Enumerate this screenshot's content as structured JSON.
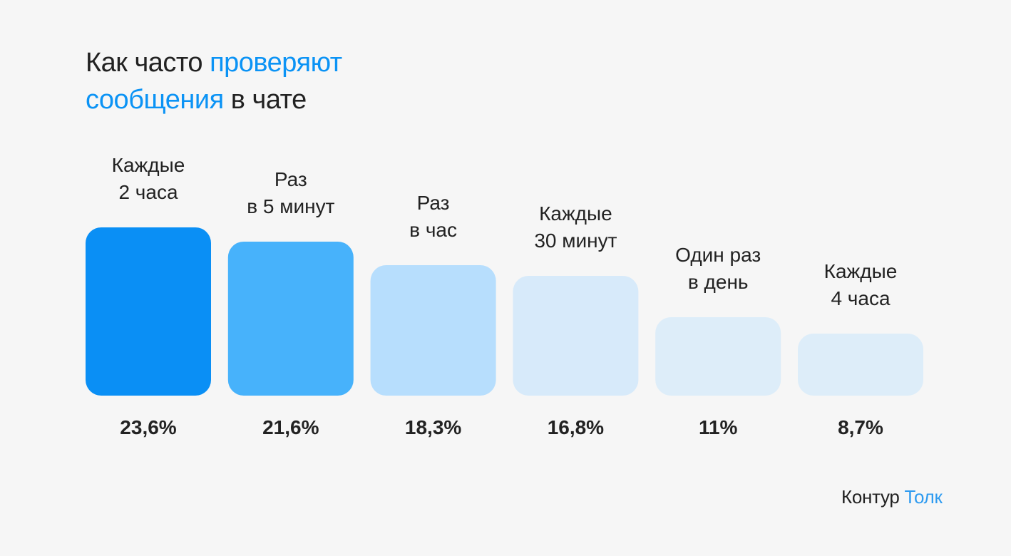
{
  "title": {
    "part1": "Как часто ",
    "part2": "проверяют",
    "part3": "сообщения",
    "part4": " в чате"
  },
  "logo": {
    "brand": "Контур",
    "product": "Толк"
  },
  "chart_data": {
    "type": "bar",
    "categories": [
      [
        "Каждые",
        "2 часа"
      ],
      [
        "Раз",
        "в 5 минут"
      ],
      [
        "Раз",
        "в час"
      ],
      [
        "Каждые",
        "30 минут"
      ],
      [
        "Один раз",
        "в день"
      ],
      [
        "Каждые",
        "4 часа"
      ]
    ],
    "values": [
      23.6,
      21.6,
      18.3,
      16.8,
      11,
      8.7
    ],
    "value_labels": [
      "23,6%",
      "21,6%",
      "18,3%",
      "16,8%",
      "11%",
      "8,7%"
    ],
    "colors": [
      "#0a8ff5",
      "#47b2fb",
      "#b7defd",
      "#d7eafa",
      "#ddedf9",
      "#ddedf9"
    ],
    "xlabel": "",
    "ylabel": ""
  }
}
